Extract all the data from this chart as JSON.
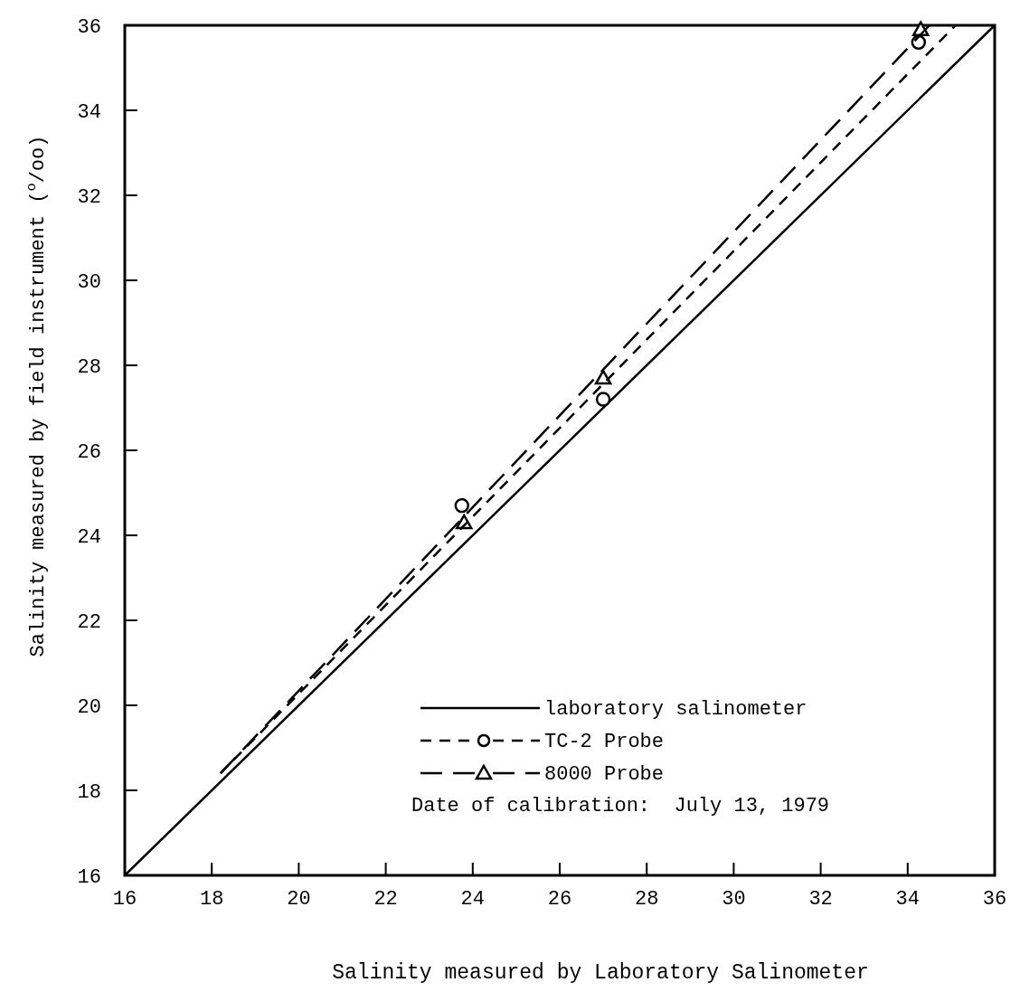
{
  "chart_data": {
    "type": "line",
    "xlabel": "Salinity measured by Laboratory Salinometer",
    "ylabel": "Salinity measured by field instrument ($^{o}$/oo)",
    "xlim": [
      16,
      36
    ],
    "ylim": [
      16,
      36
    ],
    "xticks": [
      16,
      18,
      20,
      22,
      24,
      26,
      28,
      30,
      32,
      34,
      36
    ],
    "yticks": [
      16,
      18,
      20,
      22,
      24,
      26,
      28,
      30,
      32,
      34,
      36
    ],
    "grid": false,
    "legend": "bottom right",
    "series": [
      {
        "type": "line",
        "name": "laboratory salinometer",
        "color": "#000000",
        "x": [
          16,
          36
        ],
        "values": [
          16,
          36
        ],
        "line_style": "solid",
        "marker": "none"
      },
      {
        "type": "scatter",
        "name": "TC-2 Probe",
        "color": "#000000",
        "x": [
          23.75,
          27,
          34.25
        ],
        "values": [
          24.7,
          27.2,
          35.6
        ],
        "marker": "circle",
        "line_style": "dashed"
      },
      {
        "type": "scatter",
        "name": "8000 Probe",
        "color": "#000000",
        "x": [
          23.8,
          27,
          34.3
        ],
        "values": [
          24.3,
          27.7,
          35.9
        ],
        "marker": "triangle",
        "line_style": "dashed"
      },
      {
        "color": "#000000",
        "x": [
          18.2,
          35.1
        ],
        "values": [
          18.4,
          36
        ],
        "line_style": "dashed",
        "marker": "none"
      },
      {
        "color": "#000000",
        "x": [
          18.2,
          34.5
        ],
        "values": [
          18.4,
          36
        ],
        "line_style": "dashed",
        "marker": "none"
      }
    ],
    "annotations": [
      "Date of calibration:  July 13, 1979"
    ]
  }
}
